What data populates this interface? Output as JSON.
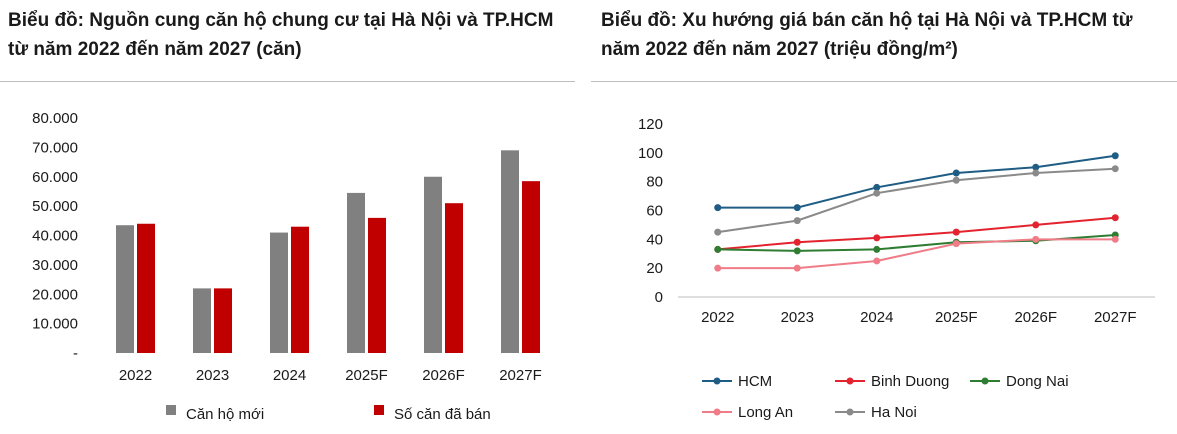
{
  "chart_data": [
    {
      "type": "bar",
      "title": "Biểu đồ: Nguồn cung căn hộ chung cư tại Hà Nội và TP.HCM từ năm 2022 đến năm 2027 (căn)",
      "categories": [
        "2022",
        "2023",
        "2024",
        "2025F",
        "2026F",
        "2027F"
      ],
      "ylim": [
        0,
        80000
      ],
      "y_ticks": [
        "-",
        "10.000",
        "20.000",
        "30.000",
        "40.000",
        "50.000",
        "60.000",
        "70.000",
        "80.000"
      ],
      "legend_position": "bottom",
      "series": [
        {
          "name": "Căn hộ mới",
          "color": "#808080",
          "values": [
            43500,
            22000,
            41000,
            54500,
            60000,
            69000
          ]
        },
        {
          "name": "Số căn đã bán",
          "color": "#c00000",
          "values": [
            44000,
            22000,
            43000,
            46000,
            51000,
            58500
          ]
        }
      ]
    },
    {
      "type": "line",
      "title": "Biểu đồ: Xu hướng giá bán căn hộ tại Hà Nội và TP.HCM từ năm 2022 đến năm 2027 (triệu đồng/m²)",
      "categories": [
        "2022",
        "2023",
        "2024",
        "2025F",
        "2026F",
        "2027F"
      ],
      "ylim": [
        0,
        120
      ],
      "y_ticks": [
        "0",
        "20",
        "40",
        "60",
        "80",
        "100",
        "120"
      ],
      "legend_position": "bottom",
      "series": [
        {
          "name": "HCM",
          "color": "#1f5d85",
          "values": [
            62,
            62,
            76,
            86,
            90,
            98
          ]
        },
        {
          "name": "Binh Duong",
          "color": "#e3232e",
          "values": [
            33,
            38,
            41,
            45,
            50,
            55
          ]
        },
        {
          "name": "Dong Nai",
          "color": "#2e7d32",
          "values": [
            33,
            32,
            33,
            38,
            39,
            43
          ]
        },
        {
          "name": "Long An",
          "color": "#f07c88",
          "values": [
            20,
            20,
            25,
            37,
            40,
            40
          ]
        },
        {
          "name": "Ha Noi",
          "color": "#8a8a8a",
          "values": [
            45,
            53,
            72,
            81,
            86,
            89
          ]
        }
      ]
    }
  ]
}
